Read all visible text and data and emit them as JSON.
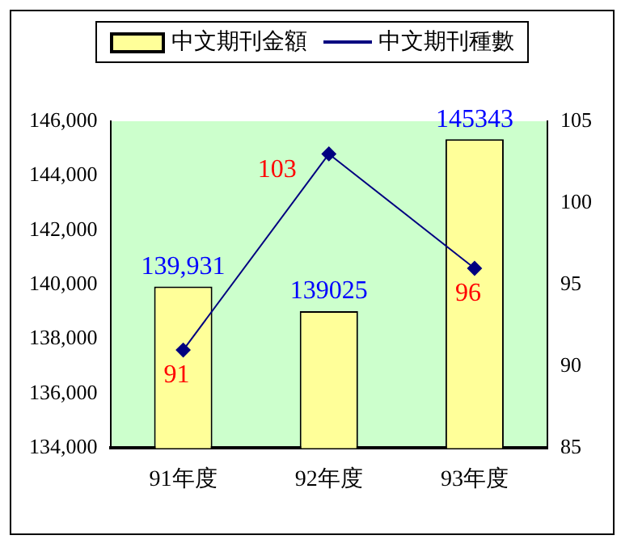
{
  "chart_data": {
    "type": "bar",
    "categories": [
      "91年度",
      "92年度",
      "93年度"
    ],
    "series": [
      {
        "name": "中文期刊金額",
        "color": "#ffff99",
        "values": [
          139931,
          139025,
          145343
        ],
        "value_labels": [
          "139,931",
          "139025",
          "145343"
        ]
      },
      {
        "name": "中文期刊種數",
        "type": "line",
        "color": "#000080",
        "axis": "y2",
        "marker": "diamond",
        "values": [
          91,
          103,
          96
        ],
        "value_labels": [
          "91",
          "103",
          "96"
        ]
      }
    ],
    "ylim": [
      134000,
      146000
    ],
    "yticks": [
      {
        "value": 134000,
        "label": "134,000"
      },
      {
        "value": 136000,
        "label": "136,000"
      },
      {
        "value": 138000,
        "label": "138,000"
      },
      {
        "value": 140000,
        "label": "140,000"
      },
      {
        "value": 142000,
        "label": "142,000"
      },
      {
        "value": 144000,
        "label": "144,000"
      },
      {
        "value": 146000,
        "label": "146,000"
      }
    ],
    "y2lim": [
      85,
      105
    ],
    "y2ticks": [
      85,
      90,
      95,
      100,
      105
    ],
    "grid": false,
    "legend": "top"
  }
}
